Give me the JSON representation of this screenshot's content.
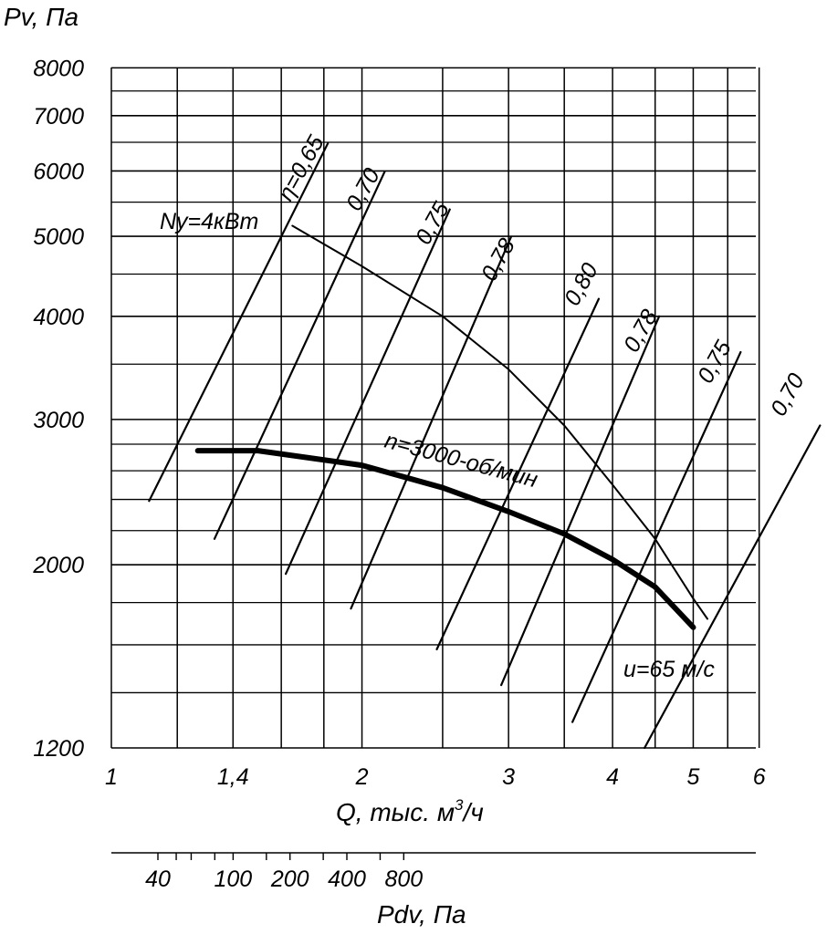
{
  "chart_data": {
    "type": "line",
    "x_scale": "log",
    "y_scale": "log",
    "y_axis": {
      "label": "Pv, Па",
      "ticks": [
        1200,
        2000,
        3000,
        4000,
        5000,
        6000,
        7000,
        8000
      ],
      "tick_labels": [
        "1200",
        "2000",
        "3000",
        "4000",
        "5000",
        "6000",
        "7000",
        "8000"
      ],
      "range": [
        1200,
        8000
      ]
    },
    "x_axis": {
      "label": "Q, тыс. м³/ч",
      "ticks": [
        1,
        1.4,
        2,
        3,
        4,
        5,
        6
      ],
      "tick_labels": [
        "1",
        "1,4",
        "2",
        "3",
        "4",
        "5",
        "6"
      ],
      "range": [
        1,
        6
      ]
    },
    "secondary_x_axis": {
      "label": "Pdv, Па",
      "ticks": [
        40,
        100,
        200,
        400,
        800
      ],
      "tick_labels": [
        "40",
        "100",
        "200",
        "400",
        "800"
      ]
    },
    "grid": true,
    "series": [
      {
        "name": "n=3000 об/мин",
        "points": [
          [
            1.27,
            2750
          ],
          [
            1.5,
            2750
          ],
          [
            2.0,
            2640
          ],
          [
            2.5,
            2480
          ],
          [
            3.0,
            2320
          ],
          [
            3.5,
            2180
          ],
          [
            4.0,
            2030
          ],
          [
            4.5,
            1880
          ],
          [
            5.0,
            1680
          ]
        ]
      },
      {
        "name": "Ny=4кВт",
        "points": [
          [
            1.65,
            5150
          ],
          [
            2.0,
            4600
          ],
          [
            2.5,
            4000
          ],
          [
            3.0,
            3450
          ],
          [
            3.5,
            2950
          ],
          [
            4.0,
            2500
          ],
          [
            4.5,
            2150
          ],
          [
            5.0,
            1820
          ],
          [
            5.2,
            1720
          ]
        ]
      }
    ],
    "efficiency_lines": [
      {
        "label": "η=0,65",
        "points": [
          [
            1.11,
            2390
          ],
          [
            1.82,
            6480
          ]
        ]
      },
      {
        "label": "0,70",
        "points": [
          [
            1.33,
            2150
          ],
          [
            2.13,
            5990
          ]
        ]
      },
      {
        "label": "0,75",
        "points": [
          [
            1.62,
            1950
          ],
          [
            2.55,
            5390
          ]
        ]
      },
      {
        "label": "0,78",
        "points": [
          [
            1.94,
            1770
          ],
          [
            3.02,
            4990
          ]
        ]
      },
      {
        "label": "0,80",
        "points": [
          [
            2.46,
            1580
          ],
          [
            3.85,
            4200
          ]
        ]
      },
      {
        "label": "0,78",
        "points": [
          [
            2.94,
            1430
          ],
          [
            4.55,
            4000
          ]
        ]
      },
      {
        "label": "0,75",
        "points": [
          [
            3.58,
            1290
          ],
          [
            5.7,
            3620
          ]
        ]
      },
      {
        "label": "0,70",
        "points": [
          [
            4.37,
            1200
          ],
          [
            7.1,
            2950
          ]
        ]
      }
    ],
    "annotations": [
      "η=0,65",
      "0,70",
      "0,75",
      "0,78",
      "0,80",
      "0,78",
      "0,75",
      "0,70",
      "Ny=4кВт",
      "n=3000-об/мин",
      "u=65 м/с"
    ]
  }
}
